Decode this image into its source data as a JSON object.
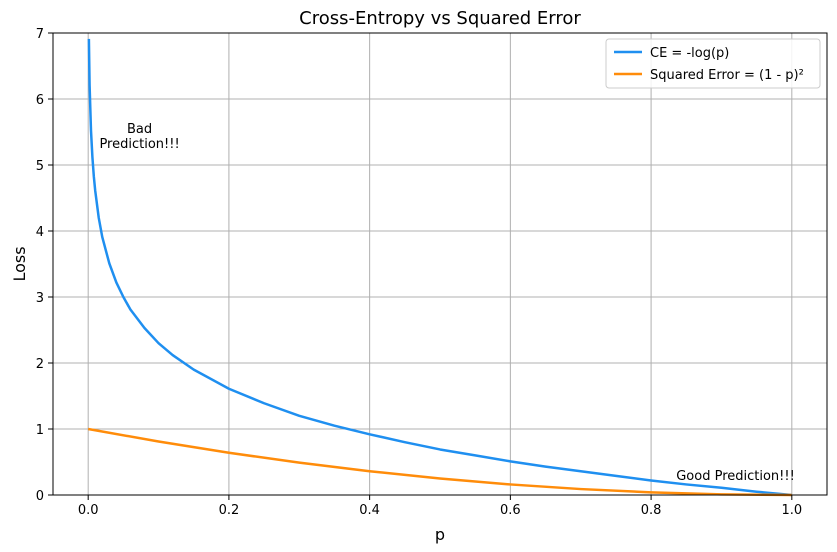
{
  "chart_data": {
    "type": "line",
    "title": "Cross-Entropy vs Squared Error",
    "xlabel": "p",
    "ylabel": "Loss",
    "xlim": [
      -0.05,
      1.05
    ],
    "ylim": [
      0,
      7
    ],
    "xticks": [
      0.0,
      0.2,
      0.4,
      0.6,
      0.8,
      1.0
    ],
    "xtick_labels": [
      "0.0",
      "0.2",
      "0.4",
      "0.6",
      "0.8",
      "1.0"
    ],
    "yticks": [
      0,
      1,
      2,
      3,
      4,
      5,
      6,
      7
    ],
    "ytick_labels": [
      "0",
      "1",
      "2",
      "3",
      "4",
      "5",
      "6",
      "7"
    ],
    "grid": true,
    "legend_position": "top-right",
    "series": [
      {
        "name": "CE = -log(p)",
        "color": "#1f8ff0",
        "x": [
          0.001,
          0.002,
          0.004,
          0.006,
          0.008,
          0.01,
          0.015,
          0.02,
          0.03,
          0.04,
          0.05,
          0.06,
          0.08,
          0.1,
          0.12,
          0.15,
          0.2,
          0.25,
          0.3,
          0.35,
          0.4,
          0.45,
          0.5,
          0.55,
          0.6,
          0.65,
          0.7,
          0.75,
          0.8,
          0.85,
          0.9,
          0.95,
          1.0
        ],
        "y": [
          6.91,
          6.21,
          5.52,
          5.12,
          4.83,
          4.61,
          4.2,
          3.91,
          3.51,
          3.22,
          3.0,
          2.81,
          2.53,
          2.3,
          2.12,
          1.9,
          1.61,
          1.39,
          1.2,
          1.05,
          0.92,
          0.8,
          0.69,
          0.6,
          0.51,
          0.43,
          0.36,
          0.29,
          0.22,
          0.16,
          0.11,
          0.05,
          0.0
        ]
      },
      {
        "name": "Squared Error = (1 - p)²",
        "color": "#ff8c0a",
        "x": [
          0.0,
          0.1,
          0.2,
          0.3,
          0.4,
          0.5,
          0.6,
          0.7,
          0.8,
          0.9,
          1.0
        ],
        "y": [
          1.0,
          0.81,
          0.64,
          0.49,
          0.36,
          0.25,
          0.16,
          0.09,
          0.04,
          0.01,
          0.0
        ]
      }
    ],
    "annotations": [
      {
        "lines": [
          "Bad",
          "Prediction!!!"
        ],
        "x": 0.073,
        "y": 5.45
      },
      {
        "lines": [
          "Good Prediction!!!"
        ],
        "x": 0.92,
        "y": 0.3
      }
    ]
  }
}
